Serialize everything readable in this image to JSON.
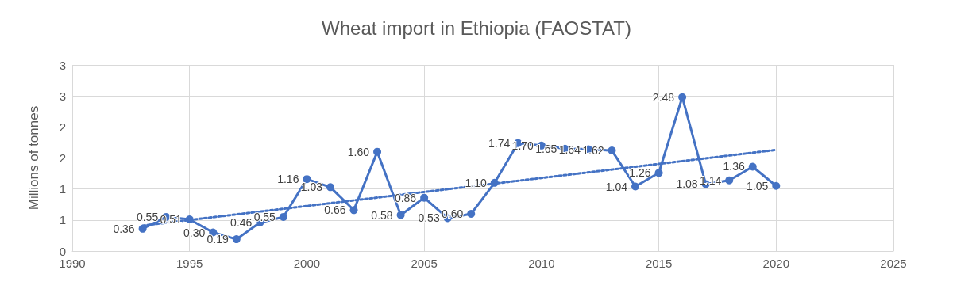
{
  "chart_data": {
    "type": "line",
    "title": "Wheat import in Ethiopia (FAOSTAT)",
    "ylabel": "Millions of tonnes",
    "x": [
      1993,
      1994,
      1995,
      1996,
      1997,
      1998,
      1999,
      2000,
      2001,
      2002,
      2003,
      2004,
      2005,
      2006,
      2007,
      2008,
      2009,
      2010,
      2011,
      2012,
      2013,
      2014,
      2015,
      2016,
      2017,
      2018,
      2019,
      2020
    ],
    "series": [
      {
        "color": "#4472c4",
        "marker": "circle",
        "line_style": "solid",
        "value_labels": [
          "0.36",
          "0.55",
          "0.51",
          "0.30",
          "0.19",
          "0.46",
          "0.55",
          "1.16",
          "1.03",
          "0.66",
          "1.60",
          "0.58",
          "0.86",
          "0.53",
          "0.60",
          "1.10",
          "1.74",
          "1.70",
          "1.65",
          "1.64",
          "1.62",
          "1.04",
          "1.26",
          "2.48",
          "1.08",
          "1.14",
          "1.36",
          "1.05"
        ],
        "values": [
          0.36,
          0.55,
          0.51,
          0.3,
          0.19,
          0.46,
          0.55,
          1.16,
          1.03,
          0.66,
          1.6,
          0.58,
          0.86,
          0.53,
          0.6,
          1.1,
          1.74,
          1.7,
          1.65,
          1.64,
          1.62,
          1.04,
          1.26,
          2.48,
          1.08,
          1.14,
          1.36,
          1.05
        ]
      },
      {
        "type": "line",
        "color": "#4472c4",
        "marker": "none",
        "line_style": "dotted",
        "x": [
          1993,
          2020
        ],
        "values": [
          0.41,
          1.63
        ]
      }
    ],
    "xlim": [
      1990,
      2025
    ],
    "xticks": [
      1990,
      1995,
      2000,
      2005,
      2010,
      2015,
      2020,
      2025
    ],
    "ylim": [
      0,
      3
    ],
    "yticks": [
      0,
      {
        "value": 0.5,
        "label": "1"
      },
      {
        "value": 1,
        "label": "1"
      },
      {
        "value": 1.5,
        "label": "2"
      },
      {
        "value": 2,
        "label": "2"
      },
      {
        "value": 2.5,
        "label": "3"
      },
      {
        "value": 3,
        "label": "3"
      }
    ],
    "grid": true
  }
}
